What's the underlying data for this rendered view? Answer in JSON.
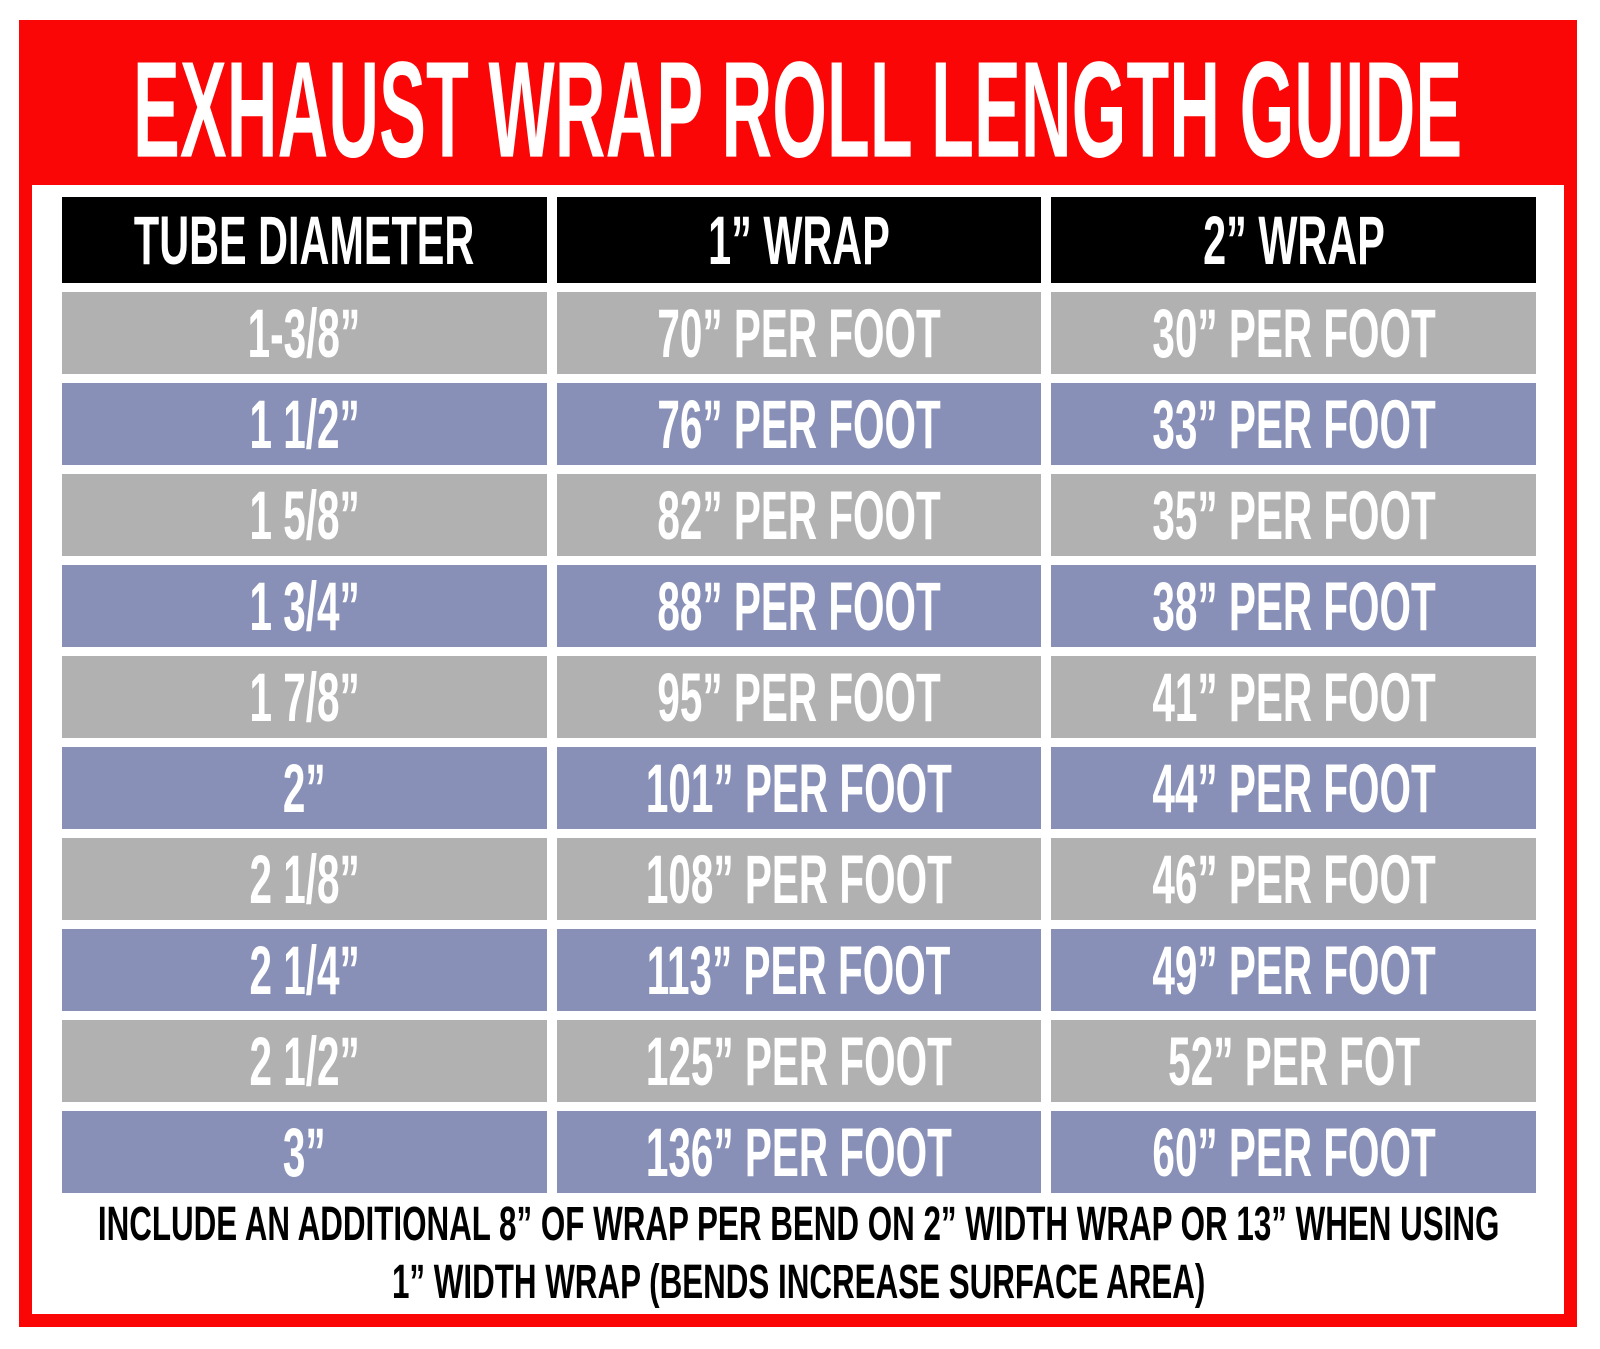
{
  "colors": {
    "red": "#fa0606",
    "black": "#000000",
    "gray_row": "#b1b1b1",
    "blue_row": "#8890b8",
    "row_text": "#ffffff",
    "note_text": "#000000"
  },
  "chart_data": {
    "type": "table",
    "title": "EXHAUST WRAP ROLL LENGTH GUIDE",
    "columns": [
      "TUBE DIAMETER",
      "1” WRAP",
      "2” WRAP"
    ],
    "rows": [
      [
        "1-3/8”",
        "70” PER FOOT",
        "30” PER FOOT"
      ],
      [
        "1 1/2”",
        "76” PER FOOT",
        "33” PER FOOT"
      ],
      [
        "1 5/8”",
        "82” PER FOOT",
        "35” PER FOOT"
      ],
      [
        "1 3/4”",
        "88” PER FOOT",
        "38” PER FOOT"
      ],
      [
        "1 7/8”",
        "95” PER FOOT",
        "41” PER FOOT"
      ],
      [
        "2”",
        "101” PER FOOT",
        "44” PER FOOT"
      ],
      [
        "2 1/8”",
        "108” PER FOOT",
        "46” PER FOOT"
      ],
      [
        "2 1/4”",
        "113” PER FOOT",
        "49” PER FOOT"
      ],
      [
        "2 1/2”",
        "125” PER FOOT",
        "52” PER FOT"
      ],
      [
        "3”",
        "136” PER FOOT",
        "60” PER FOOT"
      ]
    ],
    "row_style_alternation": [
      "gray",
      "blue"
    ],
    "note_line1": "INCLUDE AN ADDITIONAL 8” OF WRAP PER BEND ON 2” WIDTH WRAP OR 13” WHEN USING",
    "note_line2": "1” WIDTH WRAP (BENDS INCREASE SURFACE AREA)"
  }
}
